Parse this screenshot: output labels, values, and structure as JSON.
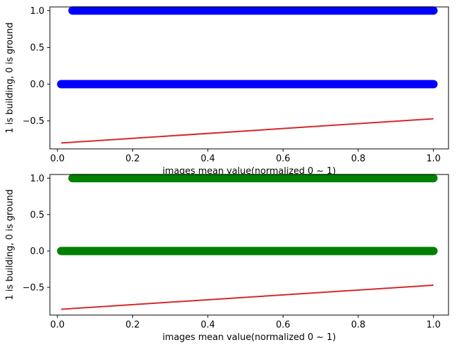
{
  "chart_data": [
    {
      "type": "scatter",
      "title": "",
      "xlabel": "images mean value(normalized 0 ~ 1)",
      "ylabel": "1 is building, 0 is ground",
      "xlim": [
        -0.02,
        1.04
      ],
      "ylim": [
        -0.88,
        1.05
      ],
      "xticks": [
        0.0,
        0.2,
        0.4,
        0.6,
        0.8,
        1.0
      ],
      "xtick_labels": [
        "0.0",
        "0.2",
        "0.4",
        "0.6",
        "0.8",
        "1.0"
      ],
      "yticks": [
        -0.5,
        0.0,
        0.5,
        1.0
      ],
      "ytick_labels": [
        "−0.5",
        "0.0",
        "0.5",
        "1.0"
      ],
      "grid": false,
      "scatter_color": "#0000ff",
      "line_color": "#d62728",
      "scatter_bands": [
        {
          "y": 1,
          "x_range": [
            0.04,
            1.0
          ]
        },
        {
          "y": 0,
          "x_range": [
            0.01,
            1.0
          ]
        }
      ],
      "fit_line": {
        "x": [
          0.01,
          1.0
        ],
        "y": [
          -0.8,
          -0.47
        ]
      }
    },
    {
      "type": "scatter",
      "title": "",
      "xlabel": "images mean value(normalized 0 ~ 1)",
      "ylabel": "1 is building, 0 is ground",
      "xlim": [
        -0.02,
        1.04
      ],
      "ylim": [
        -0.88,
        1.05
      ],
      "xticks": [
        0.0,
        0.2,
        0.4,
        0.6,
        0.8,
        1.0
      ],
      "xtick_labels": [
        "0.0",
        "0.2",
        "0.4",
        "0.6",
        "0.8",
        "1.0"
      ],
      "yticks": [
        -0.5,
        0.0,
        0.5,
        1.0
      ],
      "ytick_labels": [
        "−0.5",
        "0.0",
        "0.5",
        "1.0"
      ],
      "grid": false,
      "scatter_color": "#008000",
      "line_color": "#d62728",
      "scatter_bands": [
        {
          "y": 1,
          "x_range": [
            0.04,
            1.0
          ]
        },
        {
          "y": 0,
          "x_range": [
            0.01,
            1.0
          ]
        }
      ],
      "fit_line": {
        "x": [
          0.01,
          1.0
        ],
        "y": [
          -0.8,
          -0.47
        ]
      }
    }
  ]
}
